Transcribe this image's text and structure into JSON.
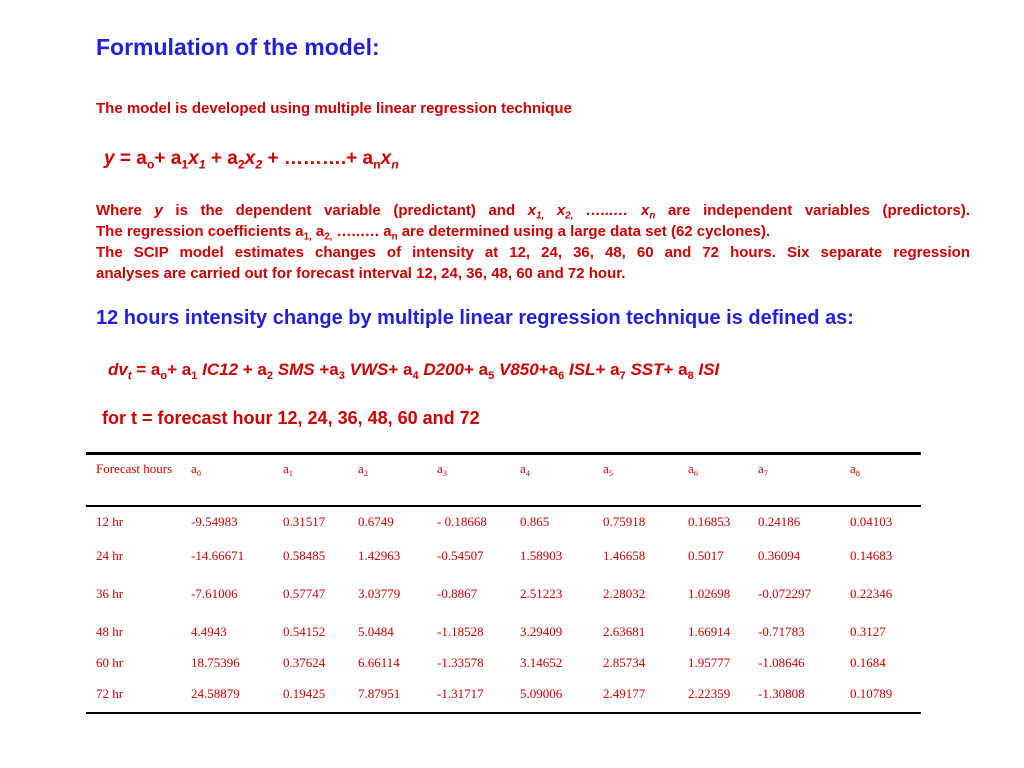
{
  "title": "Formulation of the model:",
  "intro": "The model is developed using multiple linear regression technique",
  "para": {
    "line1_where": "Where ",
    "line1_y": "y",
    "line1_mid": " is the dependent variable (predictant) and ",
    "line1_x1": "x",
    "line1_x1_sub": "1,",
    "line1_x2": "x",
    "line1_x2_sub": "2,",
    "line1_dots": " …...… ",
    "line1_xn": "x",
    "line1_xn_sub": "n",
    "line1_end": " are independent variables (predictors).",
    "line2_start": "The regression coefficients a",
    "line2_sub1": "1,",
    "line2_a2": " a",
    "line2_sub2": "2,",
    "line2_dots": " …..…. a",
    "line2_subn": "n",
    "line2_end": " are determined using a large data set (62 cyclones).",
    "line3": "The SCIP model estimates changes of intensity at 12, 24, 36, 48, 60 and 72 hours. Six separate regression",
    "line4": "analyses are carried out for forecast interval 12, 24, 36, 48, 60 and 72 hour."
  },
  "heading2": "12 hours intensity change by multiple linear regression technique is defined as:",
  "for_line": "for t = forecast hour 12, 24, 36, 48, 60 and 72",
  "table": {
    "headers": [
      {
        "text": "Forecast hours",
        "sub": ""
      },
      {
        "text": "a",
        "sub": "0"
      },
      {
        "text": "a",
        "sub": "1"
      },
      {
        "text": "a",
        "sub": "2"
      },
      {
        "text": "a",
        "sub": "3"
      },
      {
        "text": "a",
        "sub": "4"
      },
      {
        "text": "a",
        "sub": "5"
      },
      {
        "text": "a",
        "sub": "6"
      },
      {
        "text": "a",
        "sub": "7"
      },
      {
        "text": "a",
        "sub": "8"
      }
    ],
    "rows": [
      [
        "12 hr",
        "-9.54983",
        "0.31517",
        "0.6749",
        "- 0.18668",
        "0.865",
        "0.75918",
        "0.16853",
        "0.24186",
        "0.04103"
      ],
      [
        "24 hr",
        "-14.66671",
        "0.58485",
        "1.42963",
        "-0.54507",
        "1.58903",
        "1.46658",
        "0.5017",
        "0.36094",
        "0.14683"
      ],
      [
        "36 hr",
        "-7.61006",
        "0.57747",
        "3.03779",
        "-0.8867",
        "2.51223",
        "2.28032",
        "1.02698",
        "-0.072297",
        "0.22346"
      ],
      [
        "48 hr",
        "4.4943",
        "0.54152",
        "5.0484",
        "-1.18528",
        "3.29409",
        "2.63681",
        "1.66914",
        "-0.71783",
        "0.3127"
      ],
      [
        "60 hr",
        "18.75396",
        "0.37624",
        "6.66114",
        "-1.33578",
        "3.14652",
        "2.85734",
        "1.95777",
        "-1.08646",
        "0.1684"
      ],
      [
        "72 hr",
        "24.58879",
        "0.19425",
        "7.87951",
        "-1.31717",
        "5.09006",
        "2.49177",
        "2.22359",
        "-1.30808",
        "0.10789"
      ]
    ]
  },
  "colors": {
    "heading_blue": "#1f1fdc",
    "text_red": "#cc0000",
    "rule_black": "#000000"
  }
}
